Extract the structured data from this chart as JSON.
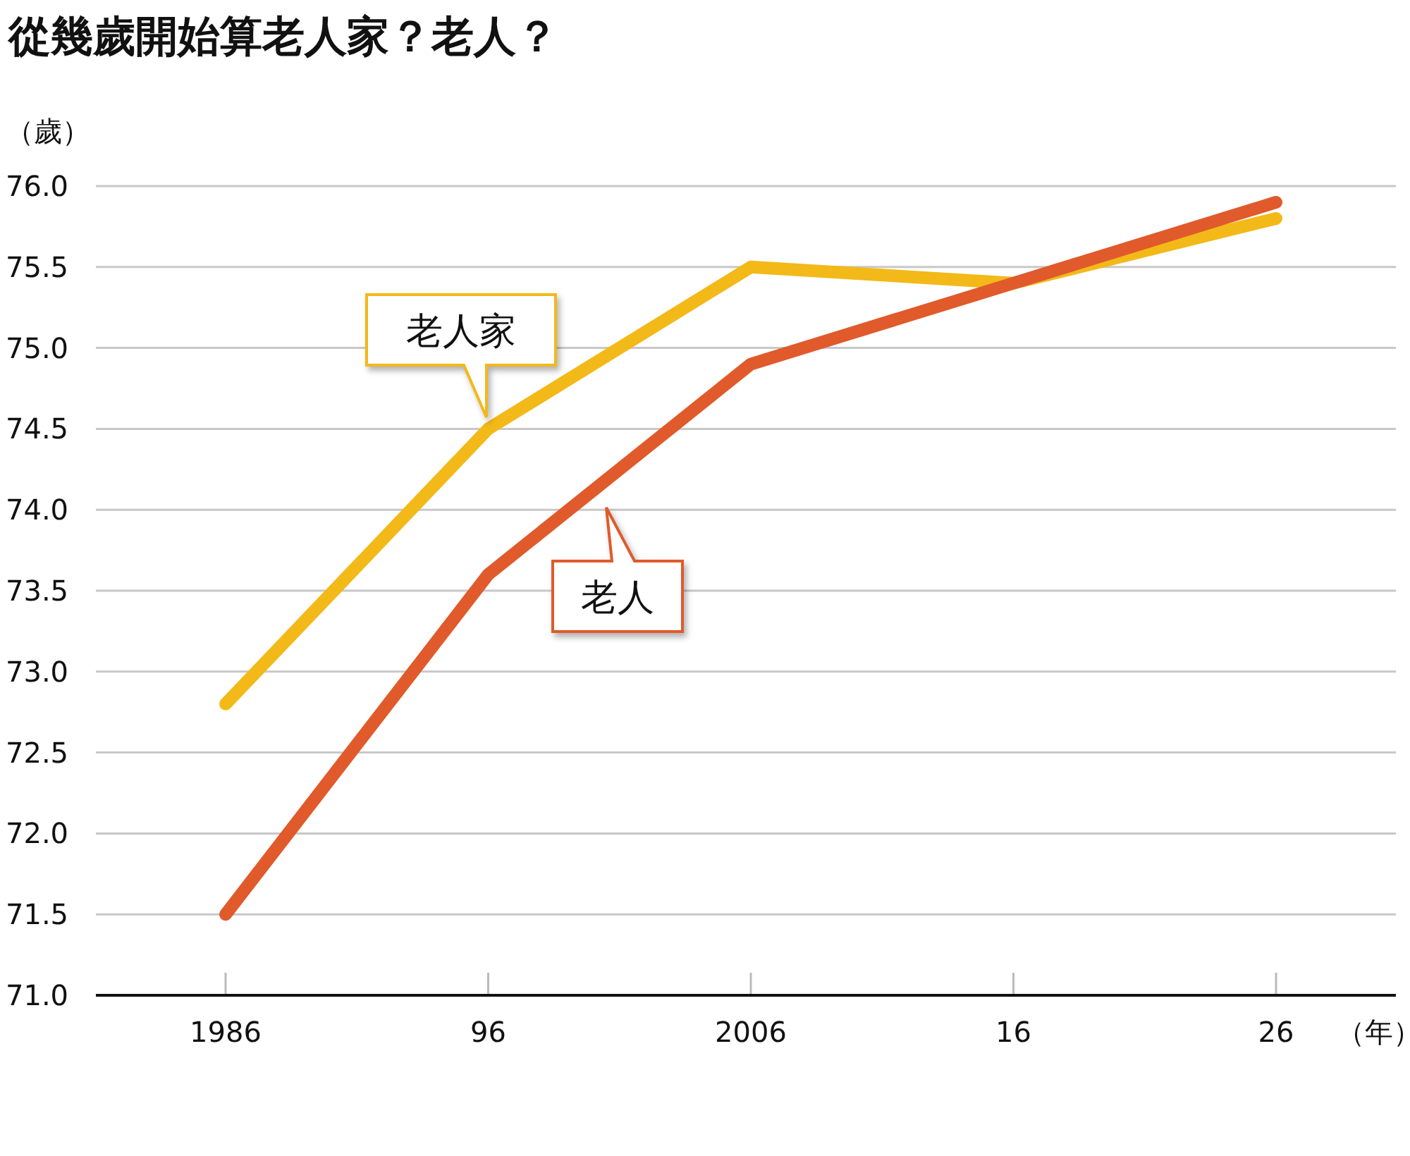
{
  "chart_data": {
    "type": "line",
    "title": "從幾歲開始算老人家？老人？",
    "ylabel": "（歲）",
    "xlabel": "（年）",
    "categories": [
      "1986",
      "96",
      "2006",
      "16",
      "26"
    ],
    "series": [
      {
        "name": "老人家",
        "color": "#f2b918",
        "values": [
          72.8,
          74.5,
          75.5,
          75.4,
          75.8
        ]
      },
      {
        "name": "老人",
        "color": "#e05a2b",
        "values": [
          71.5,
          73.6,
          74.9,
          75.4,
          75.9
        ]
      }
    ],
    "ylim": [
      71.0,
      76.0
    ],
    "yticks": [
      {
        "value": 71.0,
        "label": "71.0"
      },
      {
        "value": 71.5,
        "label": "71.5"
      },
      {
        "value": 72.0,
        "label": "72.0"
      },
      {
        "value": 72.5,
        "label": "72.5"
      },
      {
        "value": 73.0,
        "label": "73.0"
      },
      {
        "value": 73.5,
        "label": "73.5"
      },
      {
        "value": 74.0,
        "label": "74.0"
      },
      {
        "value": 74.5,
        "label": "74.5"
      },
      {
        "value": 75.0,
        "label": "75.0"
      },
      {
        "value": 75.5,
        "label": "75.5"
      },
      {
        "value": 76.0,
        "label": "76.0"
      }
    ],
    "grid": "y",
    "marker": "none",
    "line_style": "solid"
  }
}
